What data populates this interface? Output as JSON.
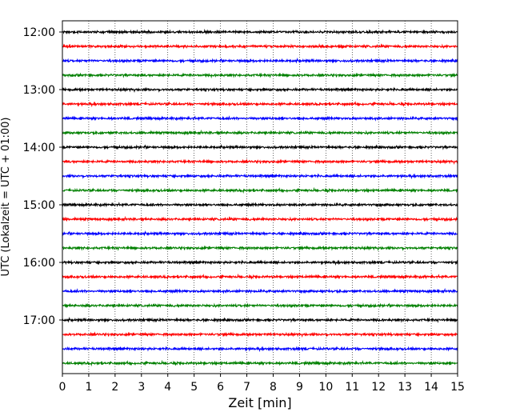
{
  "chart_data": {
    "type": "line",
    "subtype": "helicorder",
    "xlabel": "Zeit  [min]",
    "ylabel": "UTC (Lokalzeit = UTC + 01:00)",
    "xlim": [
      0,
      15
    ],
    "x_ticks": [
      0,
      1,
      2,
      3,
      4,
      5,
      6,
      7,
      8,
      9,
      10,
      11,
      12,
      13,
      14,
      15
    ],
    "y_tick_labels": [
      "12:00",
      "13:00",
      "14:00",
      "15:00",
      "16:00",
      "17:00"
    ],
    "trace_start_minutes": [
      720,
      735,
      750,
      765,
      780,
      795,
      810,
      825,
      840,
      855,
      870,
      885,
      900,
      915,
      930,
      945,
      960,
      975,
      990,
      1005,
      1020,
      1035,
      1050,
      1065
    ],
    "trace_colors": [
      "#000000",
      "#ff0000",
      "#0000ff",
      "#008000"
    ],
    "vertical_grid": "dotted at each minute",
    "grid": true
  }
}
